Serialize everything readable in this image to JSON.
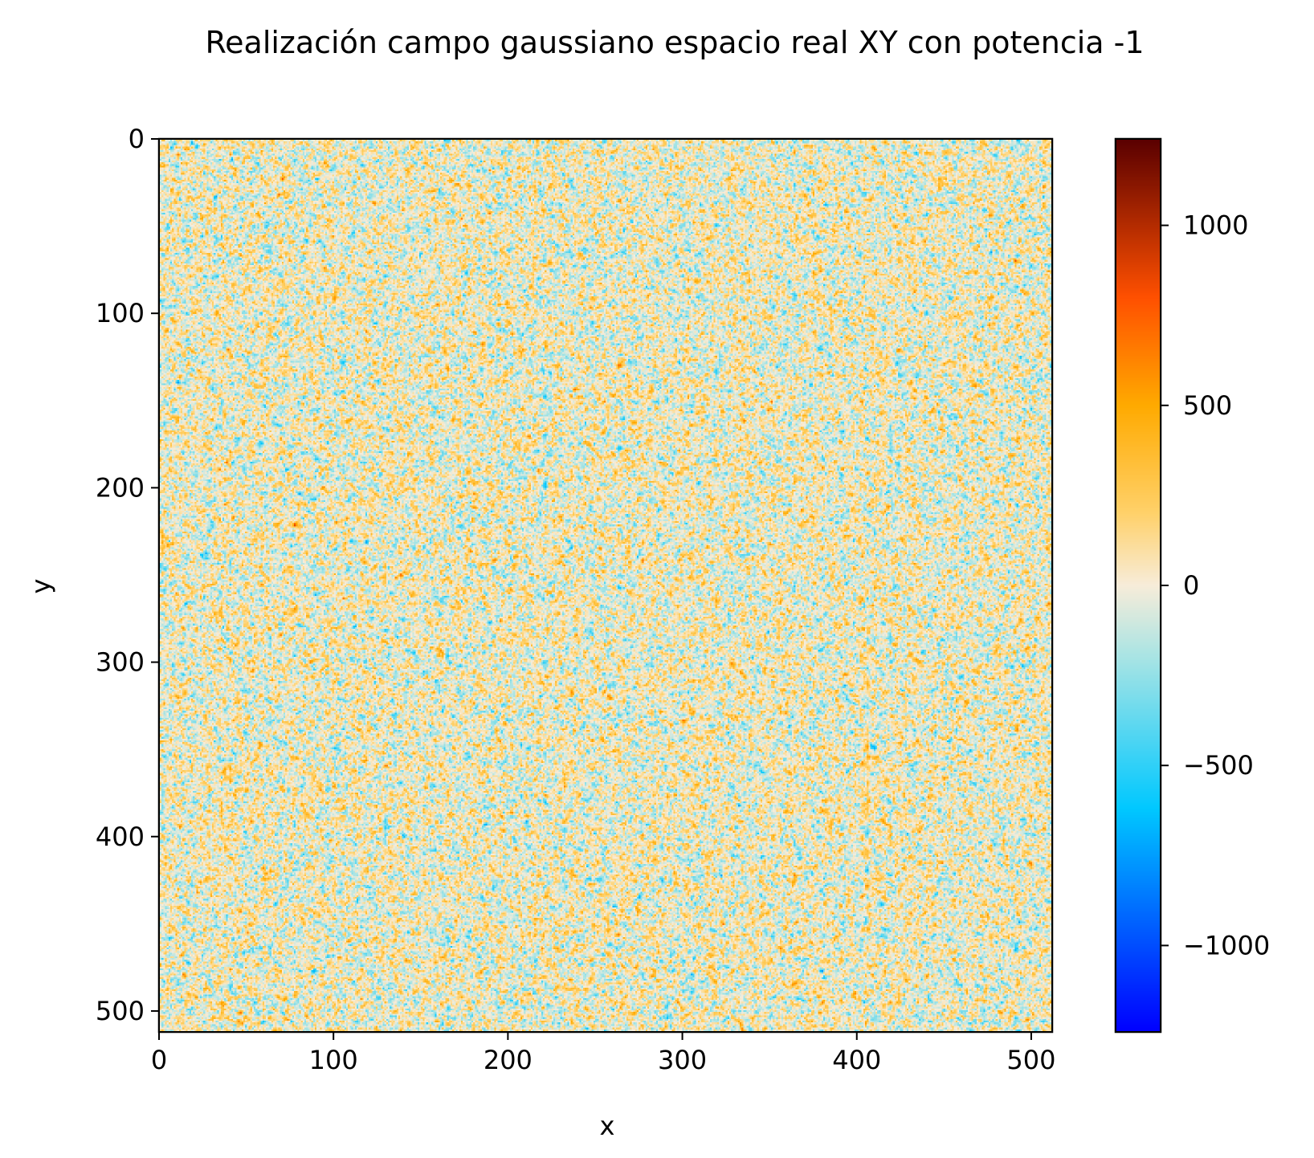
{
  "chart_data": {
    "type": "heatmap",
    "title": "Realización campo gaussiano espacio real XY con potencia -1",
    "xlabel": "x",
    "ylabel": "y",
    "grid": false,
    "x_ticks": [
      0,
      100,
      200,
      300,
      400,
      500
    ],
    "y_ticks": [
      0,
      100,
      200,
      300,
      400,
      500
    ],
    "xlim": [
      0,
      512
    ],
    "ylim": [
      512,
      0
    ],
    "y_axis_inverted": true,
    "field_size": [
      512,
      512
    ],
    "field_description": "Random Gaussian realization; values mostly within about ±400",
    "colorbar": {
      "range": [
        -1240,
        1240
      ],
      "ticks": [
        1000,
        500,
        0,
        -500,
        -1000
      ],
      "tick_labels": [
        "1000",
        "500",
        "0",
        "−500",
        "−1000"
      ],
      "placement": "right",
      "colormap_stops": [
        {
          "value": -1240,
          "color": "#0000ff"
        },
        {
          "value": -620,
          "color": "#00c8ff"
        },
        {
          "value": -200,
          "color": "#a8e4e4"
        },
        {
          "value": 0,
          "color": "#f7ecd9"
        },
        {
          "value": 200,
          "color": "#ffd16a"
        },
        {
          "value": 500,
          "color": "#ffaa00"
        },
        {
          "value": 800,
          "color": "#ff5000"
        },
        {
          "value": 1240,
          "color": "#5a0000"
        }
      ]
    }
  }
}
